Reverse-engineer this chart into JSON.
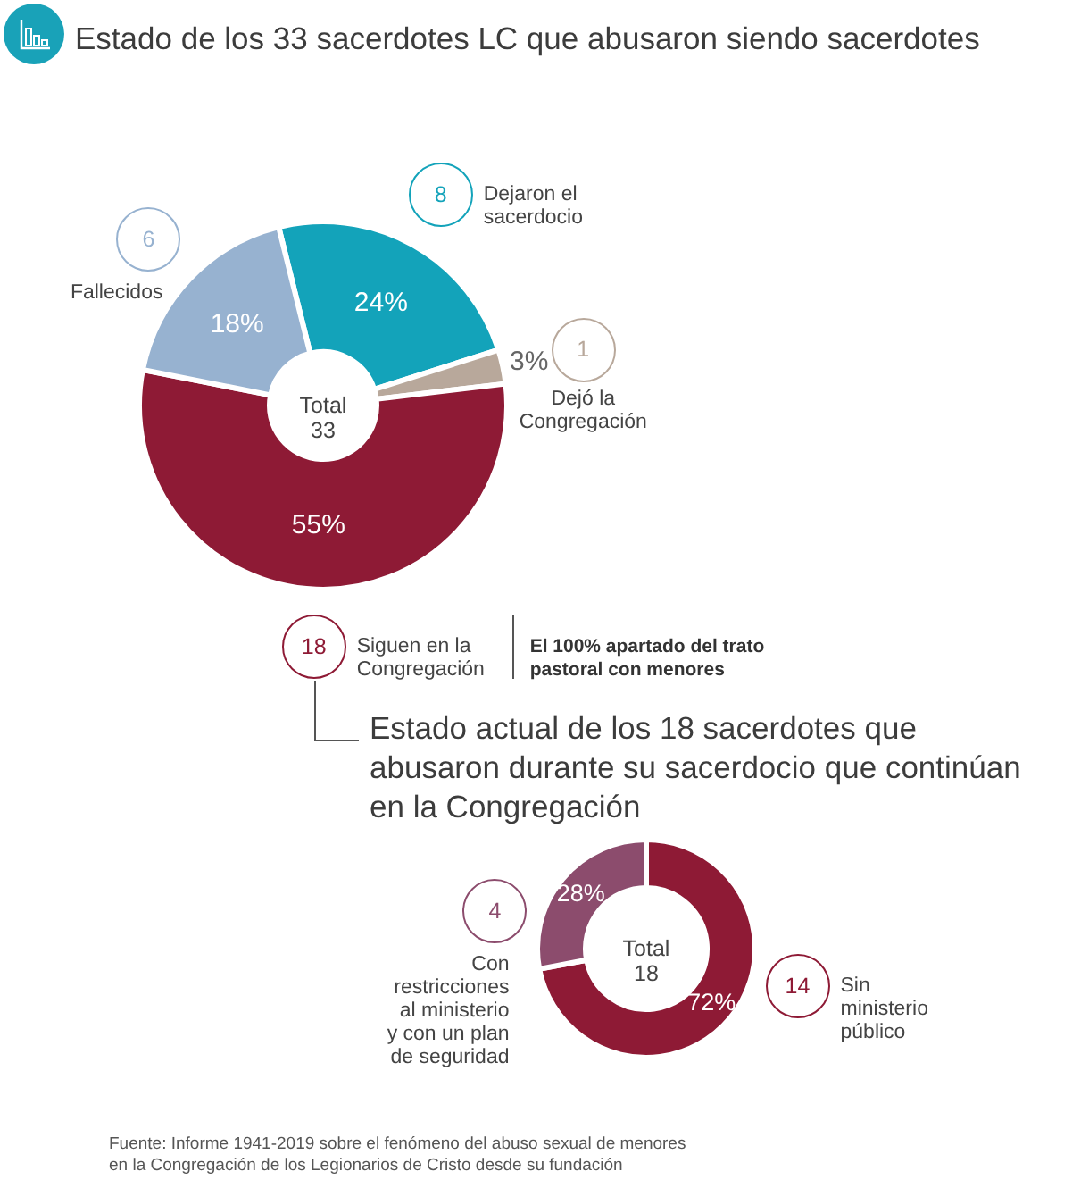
{
  "chart_data": [
    {
      "type": "donut",
      "title": "Estado de los 33 sacerdotes LC que abusaron siendo sacerdotes",
      "categories": [
        "Dejaron el sacerdocio",
        "Dejó la Congregación",
        "Siguen en la Congregación",
        "Fallecidos"
      ],
      "values": [
        24,
        3,
        55,
        18
      ],
      "colors": [
        "#13a3ba",
        "#b8a89b",
        "#8e1a35",
        "#97b2d0"
      ],
      "value_labels": [
        "24%",
        "3%",
        "55%",
        "18%"
      ],
      "annotations": [
        {
          "text": "8",
          "x": "Dejaron el sacerdocio"
        },
        {
          "text": "1",
          "x": "Dejó la Congregación"
        },
        {
          "text": "18",
          "x": "Siguen en la Congregación"
        },
        {
          "text": "6",
          "x": "Fallecidos"
        },
        "Total 33",
        "El 100% apartado del trato pastoral con menores"
      ]
    },
    {
      "type": "donut",
      "title": "Estado actual de los 18 sacerdotes que abusaron durante su sacerdocio que continúan en la Congregación",
      "categories": [
        "Sin ministerio público",
        "Con restricciones al ministerio y con un plan de seguridad"
      ],
      "values": [
        72,
        28
      ],
      "colors": [
        "#8e1a35",
        "#8c4c6d"
      ],
      "value_labels": [
        "72%",
        "28%"
      ],
      "annotations": [
        {
          "text": "14",
          "x": "Sin ministerio público"
        },
        {
          "text": "4",
          "x": "Con restricciones al ministerio y con un plan de seguridad"
        },
        "Total 18",
        "Fuente: Informe 1941-2019 sobre el fenómeno del abuso sexual de menores en la Congregación de los Legionarios de Cristo desde su fundación"
      ]
    }
  ]
}
